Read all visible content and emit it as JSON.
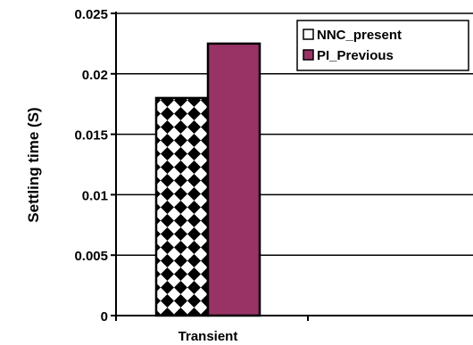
{
  "chart_data": {
    "type": "bar",
    "categories": [
      "Transient"
    ],
    "series": [
      {
        "name": "NNC_present",
        "values": [
          0.018
        ],
        "pattern": "diamond-checker",
        "color": "#000000"
      },
      {
        "name": "PI_Previous",
        "values": [
          0.0225
        ],
        "color": "#993366"
      }
    ],
    "title": "",
    "xlabel": "",
    "ylabel": "Settling time (S)",
    "ylim": [
      0,
      0.025
    ],
    "yticks": [
      0,
      0.005,
      0.01,
      0.015,
      0.02,
      0.025
    ],
    "ytick_labels": [
      "0",
      "0.005",
      "0.01",
      "0.015",
      "0.02",
      "0.025"
    ],
    "grid": true,
    "legend_position": "top-right"
  }
}
